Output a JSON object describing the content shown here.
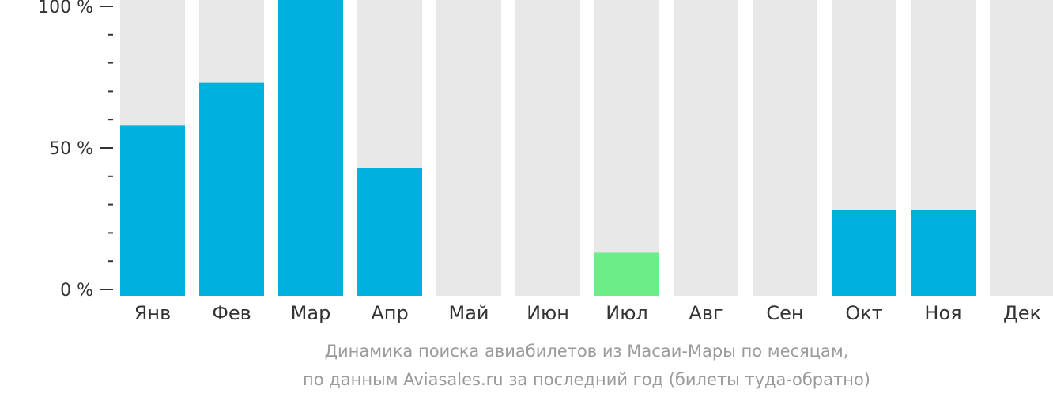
{
  "chart_data": {
    "type": "bar",
    "categories": [
      "Янв",
      "Фев",
      "Мар",
      "Апр",
      "Май",
      "Июн",
      "Июл",
      "Авг",
      "Сен",
      "Окт",
      "Ноя",
      "Дек"
    ],
    "values": [
      58,
      73,
      100,
      43,
      0,
      0,
      13,
      0,
      0,
      28,
      28,
      0
    ],
    "bar_colors": [
      "#00b0dd",
      "#00b0dd",
      "#00b0dd",
      "#00b0dd",
      "#00b0dd",
      "#00b0dd",
      "#6ded87",
      "#00b0dd",
      "#00b0dd",
      "#00b0dd",
      "#00b0dd",
      "#00b0dd"
    ],
    "background_bar_color": "#e8e8e8",
    "ylim": [
      0,
      100
    ],
    "yticks": [
      {
        "value": 100,
        "label": "100 %"
      },
      {
        "value": 50,
        "label": "50 %"
      },
      {
        "value": 0,
        "label": "0 %"
      }
    ],
    "minor_ticks": [
      90,
      80,
      70,
      60,
      40,
      30,
      20,
      10
    ],
    "grid": false,
    "legend": "none"
  },
  "caption": {
    "line1": "Динамика поиска авиабилетов из Масаи-Мары по месяцам,",
    "line2": "по данным Aviasales.ru за последний год (билеты туда-обратно)"
  }
}
